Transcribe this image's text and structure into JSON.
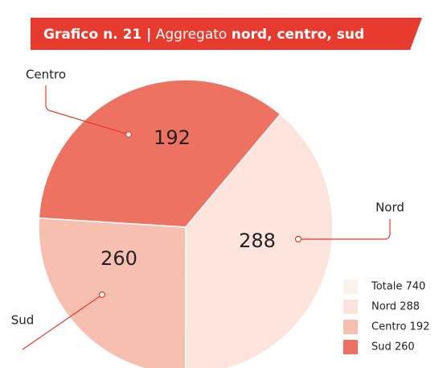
{
  "chart_data": {
    "type": "pie",
    "title": {
      "prefix": "Grafico n. 21 |",
      "main": "Aggregato",
      "emphasis": "nord, centro, sud"
    },
    "categories": [
      "Nord",
      "Centro",
      "Sud"
    ],
    "values": [
      288,
      192,
      260
    ],
    "colors": [
      "#fce3db",
      "#f7bfb0",
      "#ee7262"
    ],
    "legend": [
      {
        "label": "Totale 740",
        "color": "#fdf1ed"
      },
      {
        "label": "Nord 288",
        "color": "#fce3db"
      },
      {
        "label": "Centro 192",
        "color": "#f7bfb0"
      },
      {
        "label": "Sud 260",
        "color": "#ee7262"
      }
    ]
  }
}
